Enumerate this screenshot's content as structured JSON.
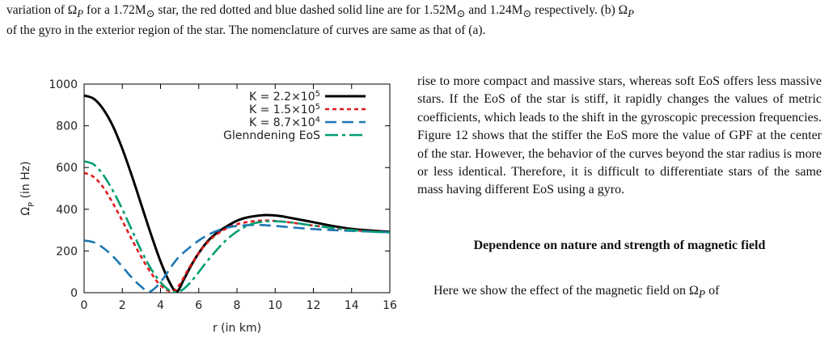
{
  "caption": {
    "line1": "variation of Ω",
    "line1_sub": "P",
    "line1_rest": " for a 1.72M",
    "line1_rest2": " star, the red dotted and blue dashed solid line are for 1.52M",
    "line1_rest3": " and 1.24M",
    "line1_rest4": " respectively. (b) Ω",
    "line1_sub2": "P",
    "line2": "of the gyro in the exterior region of the star. The nomenclature of curves are same as that of (a)."
  },
  "body": {
    "paragraph": "rise to more compact and massive stars, whereas soft EoS offers less massive stars. If the EoS of the star is stiff, it rapidly changes the values of metric coefficients, which leads to the shift in the gyroscopic precession frequencies. Figure 12 shows that the stiffer the EoS more the value of GPF at the center of the star. However, the behavior of the curves beyond the star radius is more or less identical. Therefore, it is difficult to differentiate stars of the same mass having different EoS using a gyro.",
    "heading": "Dependence on nature and strength of magnetic field",
    "last_line_prefix": "Here we show the effect of the magnetic field on Ω",
    "last_line_sub": "P",
    "last_line_suffix": " of"
  },
  "chart_data": {
    "type": "line",
    "xlabel": "r (in km)",
    "ylabel": "Ω_P (in Hz)",
    "xlim": [
      0,
      16
    ],
    "ylim": [
      0,
      1000
    ],
    "xticks": [
      "0",
      "2",
      "4",
      "6",
      "8",
      "10",
      "12",
      "14",
      "16"
    ],
    "yticks": [
      "0",
      "200",
      "400",
      "600",
      "800",
      "1000"
    ],
    "grid": false,
    "legend_position": "top-right",
    "series": [
      {
        "name": "K = 2.2×10^5",
        "legend_base": "K = 2.2×10",
        "legend_exp": "5",
        "color": "#000000",
        "dash": "solid",
        "x": [
          0,
          0.5,
          1,
          1.5,
          2,
          2.5,
          3,
          3.5,
          4,
          4.5,
          4.85,
          5.2,
          5.6,
          6,
          6.5,
          7,
          7.5,
          8,
          8.5,
          9,
          9.5,
          10,
          10.5,
          11,
          12,
          13,
          14,
          15,
          16
        ],
        "y": [
          945,
          930,
          880,
          800,
          690,
          560,
          420,
          280,
          150,
          45,
          5,
          60,
          130,
          190,
          250,
          290,
          320,
          345,
          360,
          368,
          372,
          370,
          364,
          355,
          338,
          320,
          306,
          298,
          292
        ]
      },
      {
        "name": "K = 1.5×10^5",
        "legend_base": "K = 1.5×10",
        "legend_exp": "5",
        "color": "#e31a1c",
        "dash": "dotted",
        "x": [
          0,
          0.5,
          1,
          1.5,
          2,
          2.5,
          3,
          3.5,
          4,
          4.6,
          5,
          5.5,
          6,
          6.5,
          7,
          7.5,
          8,
          8.5,
          9,
          9.5,
          10,
          10.5,
          11,
          12,
          13,
          14,
          15,
          16
        ],
        "y": [
          575,
          555,
          505,
          430,
          345,
          255,
          170,
          95,
          35,
          5,
          40,
          120,
          190,
          245,
          283,
          310,
          328,
          338,
          344,
          346,
          344,
          340,
          334,
          322,
          310,
          300,
          294,
          290
        ]
      },
      {
        "name": "K = 8.7×10^4",
        "legend_base": "K = 8.7×10",
        "legend_exp": "4",
        "color": "#1f77b4",
        "dash": "dashed",
        "x": [
          0,
          0.5,
          1,
          1.5,
          2,
          2.5,
          3,
          3.4,
          3.8,
          4.2,
          4.6,
          5,
          5.5,
          6,
          6.5,
          7,
          7.5,
          8,
          9,
          10,
          11,
          12,
          13,
          14,
          15,
          16
        ],
        "y": [
          250,
          242,
          215,
          175,
          125,
          72,
          28,
          5,
          30,
          75,
          130,
          175,
          215,
          250,
          278,
          298,
          312,
          320,
          325,
          320,
          312,
          305,
          300,
          296,
          293,
          290
        ]
      },
      {
        "name": "Glenndening EoS",
        "legend_base": "Glenndening EoS",
        "legend_exp": "",
        "color": "#009e73",
        "dash": "dashdot",
        "x": [
          0,
          0.5,
          1,
          1.5,
          2,
          2.5,
          3,
          3.5,
          4,
          4.5,
          4.9,
          5.3,
          5.8,
          6.3,
          6.8,
          7.3,
          7.8,
          8.3,
          8.8,
          9.3,
          9.8,
          10.5,
          11,
          12,
          13,
          14,
          15,
          16
        ],
        "y": [
          630,
          615,
          565,
          490,
          400,
          300,
          200,
          115,
          50,
          10,
          3,
          25,
          75,
          135,
          190,
          240,
          280,
          310,
          330,
          340,
          343,
          340,
          335,
          322,
          310,
          300,
          293,
          289
        ]
      }
    ]
  }
}
